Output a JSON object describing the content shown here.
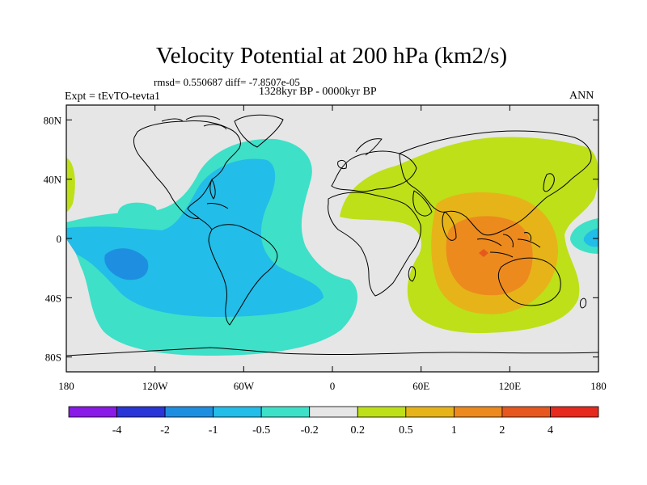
{
  "title": "Velocity Potential at 200 hPa (km2/s)",
  "stats_line": "rmsd= 0.550687 diff= -7.8507e-05",
  "period_line": "1328kyr BP - 0000kyr BP",
  "experiment_label": "Expt = tEvTO-tevta1",
  "season_label": "ANN",
  "lat_ticks": [
    {
      "value": 80,
      "label": "80N"
    },
    {
      "value": 40,
      "label": "40N"
    },
    {
      "value": 0,
      "label": "0"
    },
    {
      "value": -40,
      "label": "40S"
    },
    {
      "value": -80,
      "label": "80S"
    }
  ],
  "lon_ticks": [
    {
      "value": -180,
      "label": "180"
    },
    {
      "value": -120,
      "label": "120W"
    },
    {
      "value": -60,
      "label": "60W"
    },
    {
      "value": 0,
      "label": "0"
    },
    {
      "value": 60,
      "label": "60E"
    },
    {
      "value": 120,
      "label": "120E"
    },
    {
      "value": 180,
      "label": "180"
    }
  ],
  "colorbar": {
    "colors": [
      "#8a1ae6",
      "#2a36d6",
      "#1e8fe0",
      "#22bde8",
      "#3ee0c8",
      "#e6e6e6",
      "#bde019",
      "#e6b419",
      "#ec8a1e",
      "#e6581e",
      "#e62a1e"
    ],
    "labels": [
      "-4",
      "-2",
      "-1",
      "-0.5",
      "-0.2",
      "0.2",
      "0.5",
      "1",
      "2",
      "4"
    ]
  },
  "background_color": "#e6e6e6"
}
